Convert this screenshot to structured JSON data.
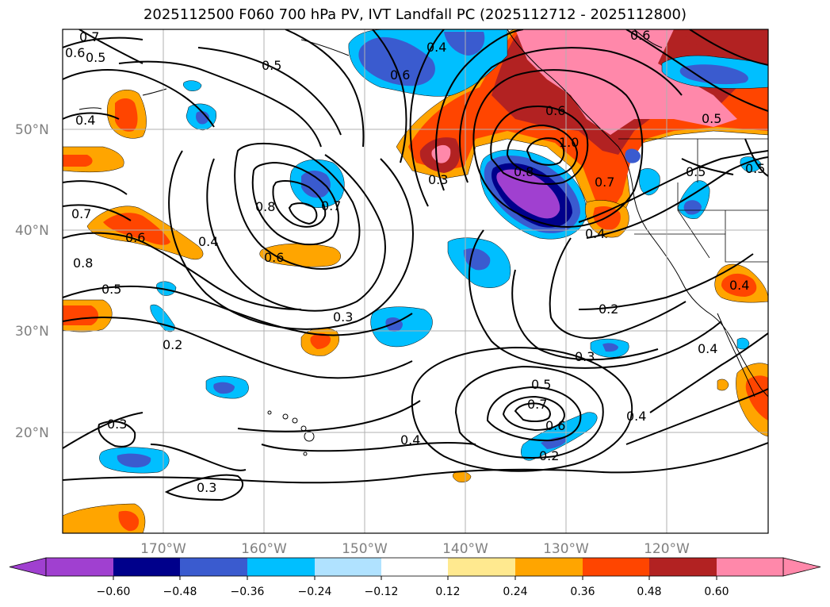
{
  "title": "2025112500 F060 700 hPa PV, IVT Landfall PC (2025112712 - 2025112800)",
  "lat_labels": [
    "50°N",
    "40°N",
    "30°N",
    "20°N"
  ],
  "lon_labels": [
    "170°W",
    "160°W",
    "150°W",
    "140°W",
    "130°W",
    "120°W"
  ],
  "colorbar": {
    "tick_labels": [
      "−0.60",
      "−0.48",
      "−0.36",
      "−0.24",
      "−0.12",
      "0.12",
      "0.24",
      "0.36",
      "0.48",
      "0.60"
    ],
    "colors": [
      "#a040d0",
      "#00008b",
      "#3a5bcf",
      "#00bfff",
      "#b0e2ff",
      "#ffffff",
      "#ffe98f",
      "#ffa500",
      "#ff4500",
      "#b22222",
      "#ff88aa",
      "#ff88aa"
    ]
  },
  "colors": {
    "purple": "#a040d0",
    "navy": "#00008b",
    "royal_blue": "#3a5bcf",
    "sky_blue": "#00bfff",
    "light_blue": "#b0e2ff",
    "orange": "#ffa500",
    "red_orange": "#ff4500",
    "firebrick": "#b22222",
    "pink": "#ff88aa"
  },
  "contour_labels": [
    {
      "text": "0.7"
    },
    {
      "text": "0.6"
    },
    {
      "text": "0.5"
    },
    {
      "text": "0.5"
    },
    {
      "text": "0.4"
    },
    {
      "text": "0.6"
    },
    {
      "text": "0.4"
    },
    {
      "text": "0.6"
    },
    {
      "text": "0.6"
    },
    {
      "text": "0.5"
    },
    {
      "text": "1.0"
    },
    {
      "text": "0.8"
    },
    {
      "text": "0.3"
    },
    {
      "text": "0.7"
    },
    {
      "text": "0.8"
    },
    {
      "text": "0.6"
    },
    {
      "text": "0.4"
    },
    {
      "text": "0.7"
    },
    {
      "text": "0.6"
    },
    {
      "text": "0.8"
    },
    {
      "text": "0.5"
    },
    {
      "text": "0.2"
    },
    {
      "text": "0.3"
    },
    {
      "text": "0.4"
    },
    {
      "text": "0.2"
    },
    {
      "text": "0.3"
    },
    {
      "text": "0.5"
    },
    {
      "text": "0.7"
    },
    {
      "text": "0.6"
    },
    {
      "text": "0.4"
    },
    {
      "text": "0.4"
    },
    {
      "text": "0.2"
    },
    {
      "text": "0.3"
    },
    {
      "text": "0.3"
    },
    {
      "text": "0.4"
    },
    {
      "text": "0.5"
    },
    {
      "text": "0.5"
    },
    {
      "text": "0.7"
    },
    {
      "text": "0.4"
    }
  ]
}
